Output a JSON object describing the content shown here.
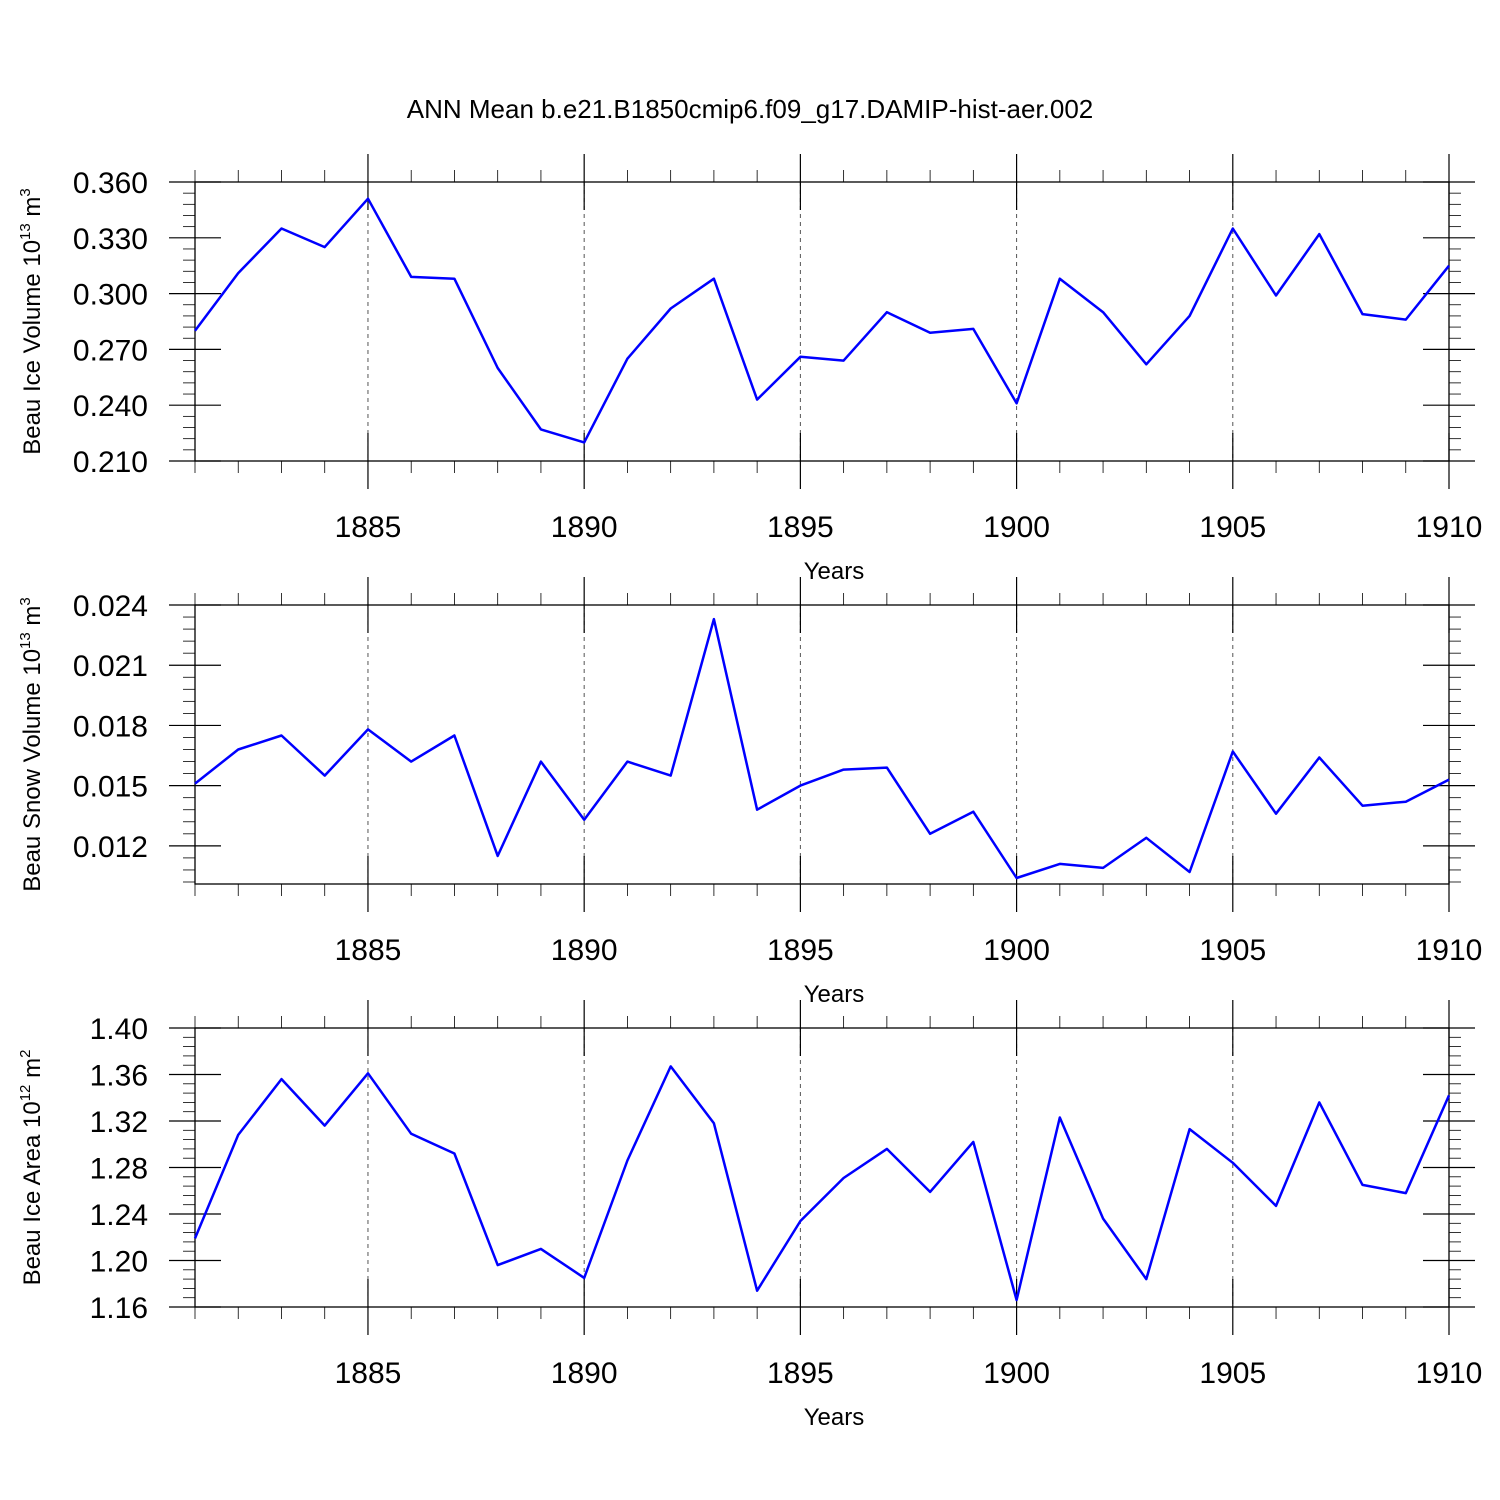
{
  "title": "ANN Mean b.e21.B1850cmip6.f09_g17.DAMIP-hist-aer.002",
  "colors": {
    "line": "#0000ff",
    "axis": "#000000",
    "grid": "#555555"
  },
  "chart_data": [
    {
      "type": "line",
      "ylabel": {
        "base": "Beau Ice Volume 10",
        "sup1": "13",
        "mid": " m",
        "sup2": "3"
      },
      "xlabel": "Years",
      "xlim": [
        1881,
        1910
      ],
      "ylim": [
        0.21,
        0.36
      ],
      "xticks": [
        1885,
        1890,
        1895,
        1900,
        1905,
        1910
      ],
      "xtick_labels": [
        "1885",
        "1890",
        "1895",
        "1900",
        "1905",
        "1910"
      ],
      "yticks": [
        0.21,
        0.24,
        0.27,
        0.3,
        0.33,
        0.36
      ],
      "ytick_labels": [
        "0.210",
        "0.240",
        "0.270",
        "0.300",
        "0.330",
        "0.360"
      ],
      "series": [
        {
          "x": [
            1881,
            1882,
            1883,
            1884,
            1885,
            1886,
            1887,
            1888,
            1889,
            1890,
            1891,
            1892,
            1893,
            1894,
            1895,
            1896,
            1897,
            1898,
            1899,
            1900,
            1901,
            1902,
            1903,
            1904,
            1905,
            1906,
            1907,
            1908,
            1909,
            1910
          ],
          "values": [
            0.28,
            0.311,
            0.335,
            0.325,
            0.351,
            0.309,
            0.308,
            0.26,
            0.227,
            0.22,
            0.265,
            0.292,
            0.308,
            0.243,
            0.266,
            0.264,
            0.29,
            0.279,
            0.281,
            0.241,
            0.308,
            0.29,
            0.262,
            0.288,
            0.335,
            0.299,
            0.332,
            0.289,
            0.286,
            0.315
          ]
        }
      ]
    },
    {
      "type": "line",
      "ylabel": {
        "base": "Beau Snow Volume 10",
        "sup1": "13",
        "mid": " m",
        "sup2": "3"
      },
      "xlabel": "Years",
      "xlim": [
        1881,
        1910
      ],
      "ylim": [
        0.0101,
        0.024
      ],
      "xticks": [
        1885,
        1890,
        1895,
        1900,
        1905,
        1910
      ],
      "xtick_labels": [
        "1885",
        "1890",
        "1895",
        "1900",
        "1905",
        "1910"
      ],
      "yticks": [
        0.012,
        0.015,
        0.018,
        0.021,
        0.024
      ],
      "ytick_labels": [
        "0.012",
        "0.015",
        "0.018",
        "0.021",
        "0.024"
      ],
      "series": [
        {
          "x": [
            1881,
            1882,
            1883,
            1884,
            1885,
            1886,
            1887,
            1888,
            1889,
            1890,
            1891,
            1892,
            1893,
            1894,
            1895,
            1896,
            1897,
            1898,
            1899,
            1900,
            1901,
            1902,
            1903,
            1904,
            1905,
            1906,
            1907,
            1908,
            1909,
            1910
          ],
          "values": [
            0.0151,
            0.0168,
            0.0175,
            0.0155,
            0.0178,
            0.0162,
            0.0175,
            0.0115,
            0.0162,
            0.0133,
            0.0162,
            0.0155,
            0.0233,
            0.0138,
            0.015,
            0.0158,
            0.0159,
            0.0126,
            0.0137,
            0.0104,
            0.0111,
            0.0109,
            0.0124,
            0.0107,
            0.0167,
            0.0136,
            0.0164,
            0.014,
            0.0142,
            0.0153
          ]
        }
      ]
    },
    {
      "type": "line",
      "ylabel": {
        "base": "Beau Ice Area 10",
        "sup1": "12",
        "mid": " m",
        "sup2": "2"
      },
      "xlabel": "Years",
      "xlim": [
        1881,
        1910
      ],
      "ylim": [
        1.16,
        1.4
      ],
      "xticks": [
        1885,
        1890,
        1895,
        1900,
        1905,
        1910
      ],
      "xtick_labels": [
        "1885",
        "1890",
        "1895",
        "1900",
        "1905",
        "1910"
      ],
      "yticks": [
        1.16,
        1.2,
        1.24,
        1.28,
        1.32,
        1.36,
        1.4
      ],
      "ytick_labels": [
        "1.16",
        "1.20",
        "1.24",
        "1.28",
        "1.32",
        "1.36",
        "1.40"
      ],
      "series": [
        {
          "x": [
            1881,
            1882,
            1883,
            1884,
            1885,
            1886,
            1887,
            1888,
            1889,
            1890,
            1891,
            1892,
            1893,
            1894,
            1895,
            1896,
            1897,
            1898,
            1899,
            1900,
            1901,
            1902,
            1903,
            1904,
            1905,
            1906,
            1907,
            1908,
            1909,
            1910
          ],
          "values": [
            1.219,
            1.308,
            1.356,
            1.316,
            1.361,
            1.309,
            1.292,
            1.196,
            1.21,
            1.185,
            1.286,
            1.367,
            1.318,
            1.174,
            1.234,
            1.271,
            1.296,
            1.259,
            1.302,
            1.166,
            1.323,
            1.236,
            1.184,
            1.313,
            1.284,
            1.247,
            1.336,
            1.265,
            1.258,
            1.342
          ]
        }
      ]
    }
  ]
}
